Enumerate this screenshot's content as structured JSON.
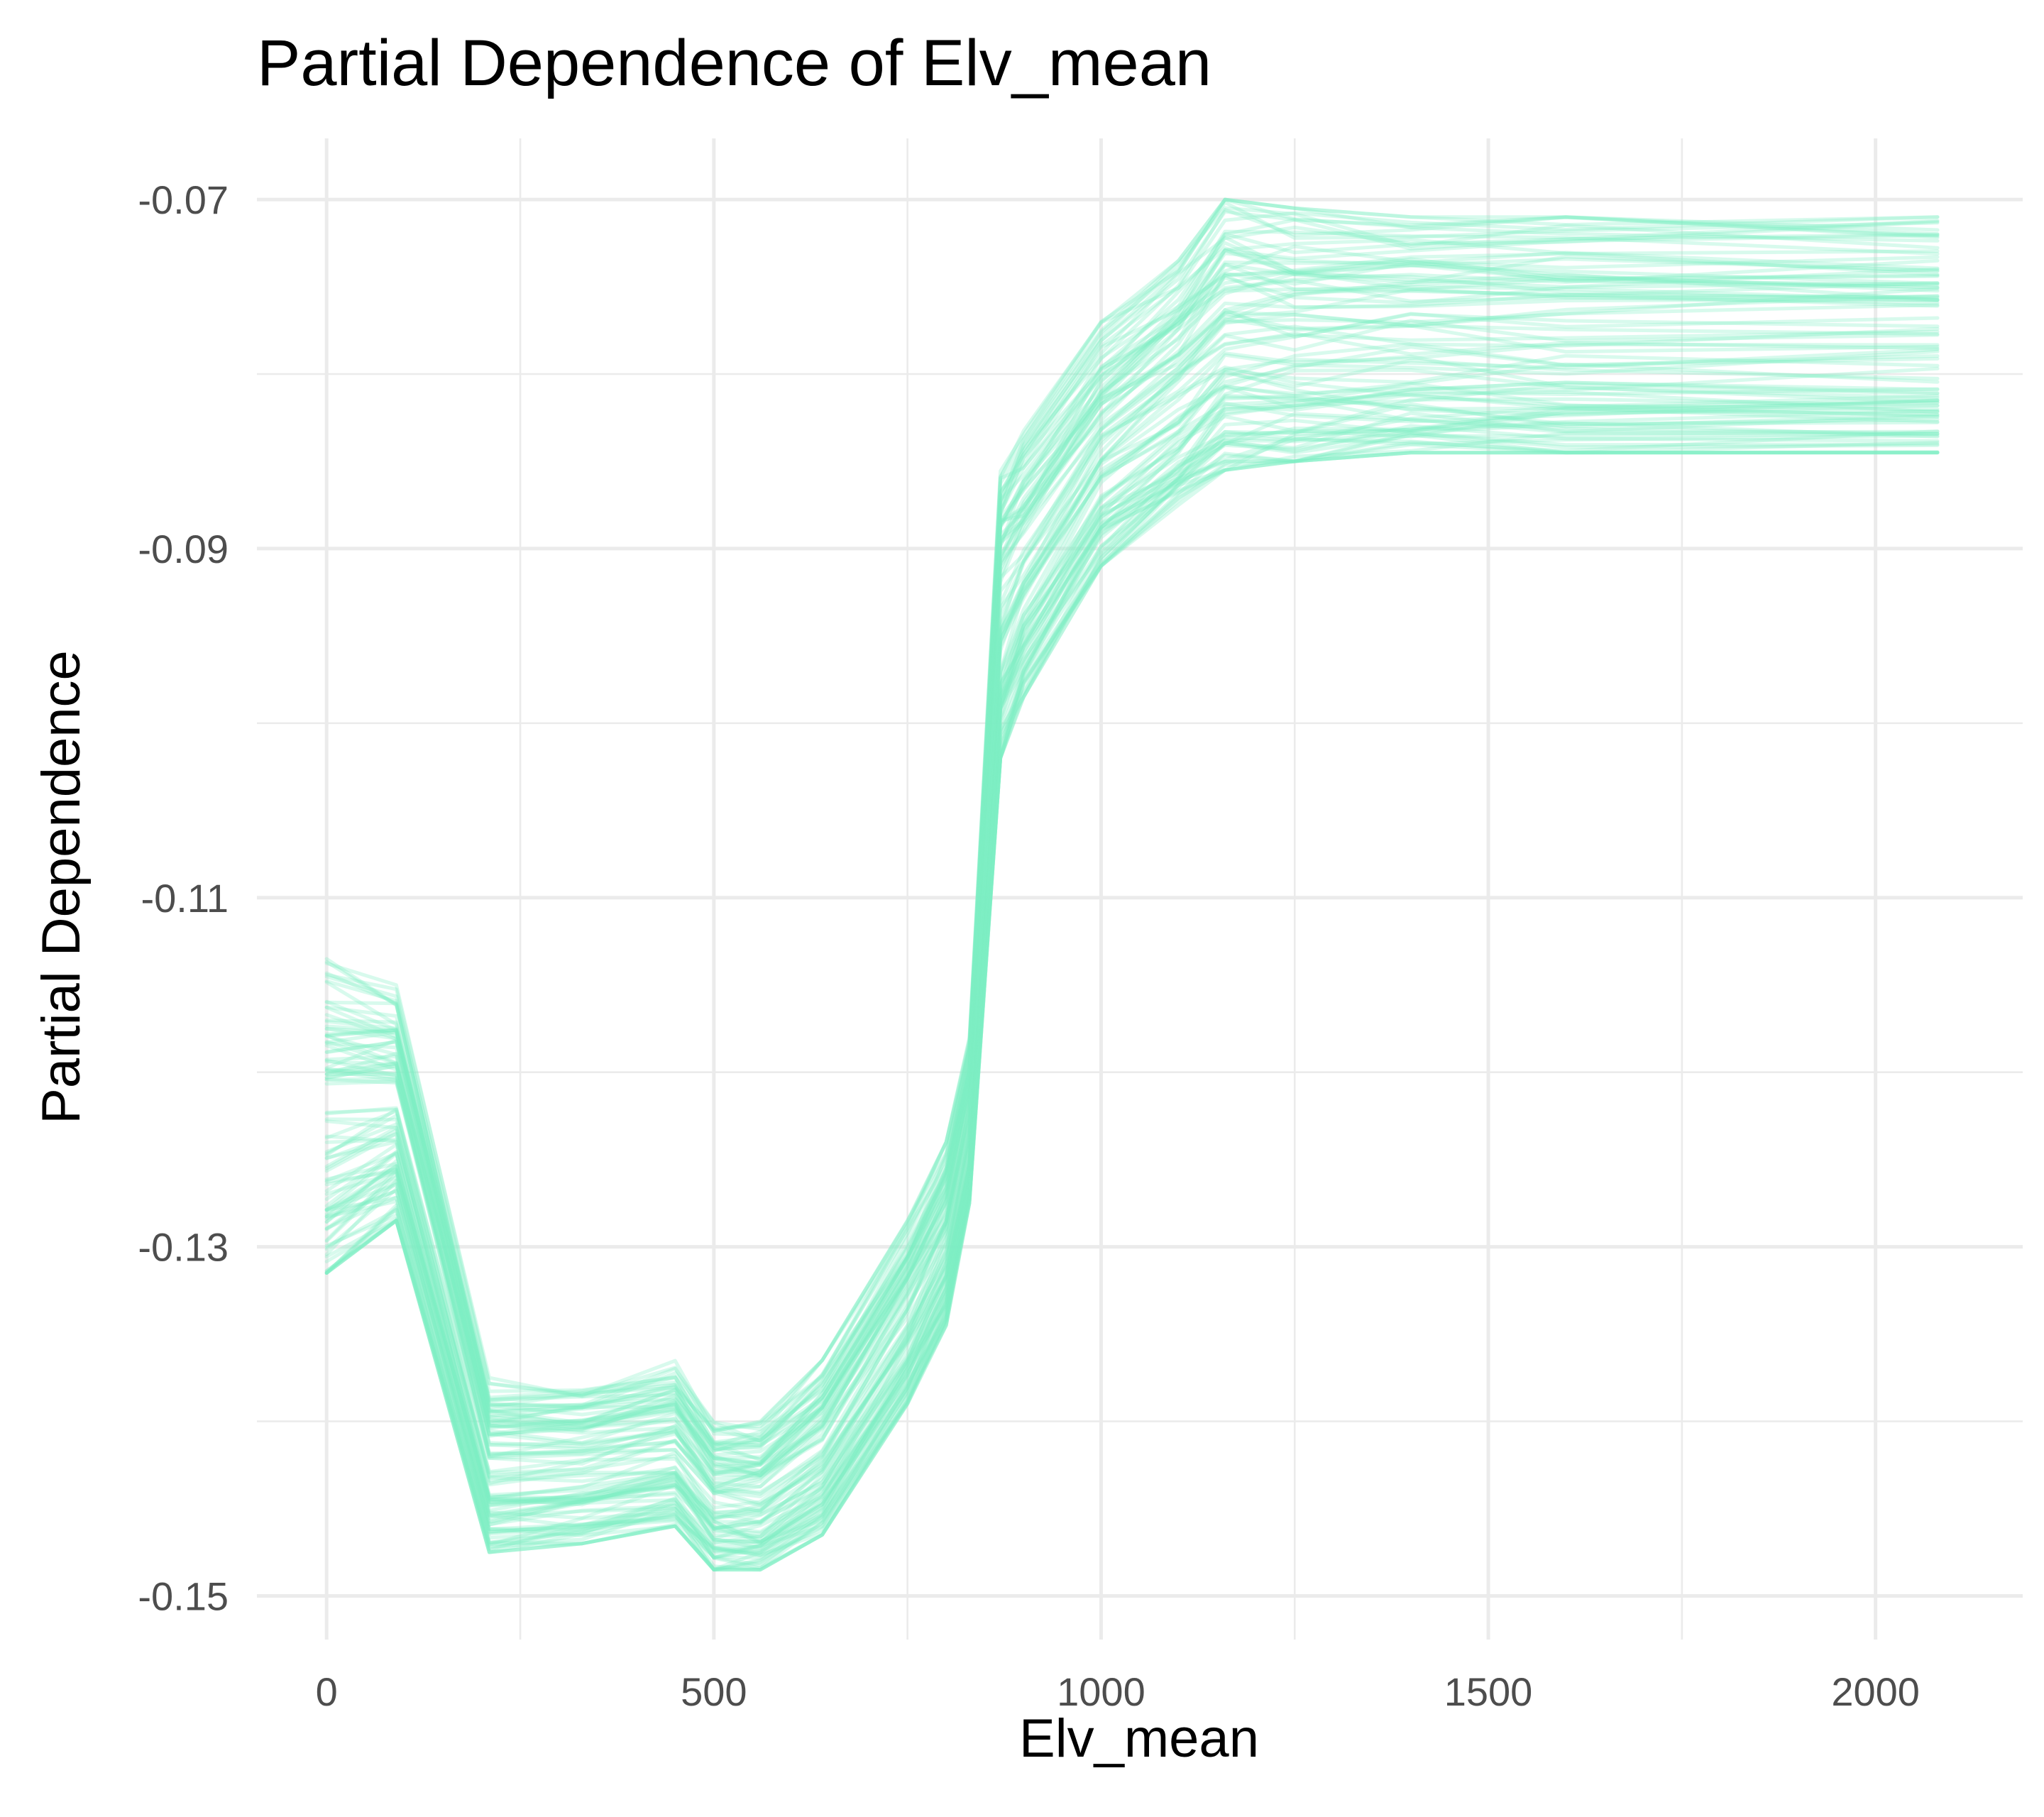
{
  "chart_data": {
    "type": "line",
    "title": "Partial Dependence of Elv_mean",
    "xlabel": "Elv_mean",
    "ylabel": "Partial Dependence",
    "xlim": [
      -90,
      2190
    ],
    "ylim": [
      -0.1525,
      -0.0665
    ],
    "x_ticks": [
      0,
      500,
      1000,
      1500,
      2000
    ],
    "x_tick_labels": [
      "0",
      "500",
      "1000",
      "1500",
      "2000"
    ],
    "y_ticks": [
      -0.15,
      -0.13,
      -0.11,
      -0.09,
      -0.07
    ],
    "y_tick_labels": [
      "-0.15",
      "-0.13",
      "-0.11",
      "-0.09",
      "-0.07"
    ],
    "x_minor_ticks": [
      250,
      750,
      1250,
      1750
    ],
    "y_minor_ticks": [
      -0.14,
      -0.12,
      -0.1,
      -0.08
    ],
    "grid": true,
    "legend": "none",
    "line_color": "#7eeec4",
    "line_opacity": 0.3,
    "x": [
      0,
      90,
      210,
      330,
      450,
      500,
      560,
      640,
      750,
      800,
      830,
      870,
      900,
      1000,
      1100,
      1160,
      1250,
      1400,
      1600,
      2080
    ],
    "mean_curve": [
      -0.1225,
      -0.1215,
      -0.1425,
      -0.1425,
      -0.1415,
      -0.1445,
      -0.1445,
      -0.1415,
      -0.134,
      -0.13,
      -0.123,
      -0.096,
      -0.093,
      -0.086,
      -0.083,
      -0.081,
      -0.0805,
      -0.08,
      -0.08,
      -0.08
    ],
    "series_summary": {
      "count": 100,
      "offset_range_low": [
        -0.009,
        -0.007,
        -0.005,
        -0.0045,
        -0.0045,
        -0.004,
        -0.004,
        -0.005,
        -0.005,
        -0.0045,
        -0.0045,
        -0.006,
        -0.0055,
        -0.005,
        -0.0045,
        -0.0045,
        -0.0045,
        -0.0045,
        -0.0045,
        -0.0045
      ],
      "offset_range_high": [
        0.009,
        0.0065,
        0.005,
        0.005,
        0.005,
        0.0045,
        0.0045,
        0.005,
        0.0055,
        0.006,
        0.005,
        0.011,
        0.01,
        0.009,
        0.0095,
        0.011,
        0.01,
        0.009,
        0.009,
        0.009
      ]
    }
  }
}
